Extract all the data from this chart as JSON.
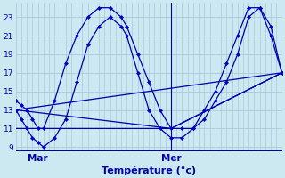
{
  "background_color": "#cce8f0",
  "grid_color": "#aac8dc",
  "line_color": "#0000aa",
  "marker_color": "#0000cc",
  "bottom_line_color": "#0000aa",
  "xlabel": "Température (°c)",
  "xlabel_color": "#0000aa",
  "xlabel_fontsize": 8,
  "ylim": [
    8.5,
    24.5
  ],
  "yticks": [
    9,
    11,
    13,
    15,
    17,
    19,
    21,
    23
  ],
  "ytick_fontsize": 6.5,
  "xlim": [
    0,
    96
  ],
  "xtick_positions": [
    8,
    56
  ],
  "xtick_labels": [
    "Mar",
    "Mer"
  ],
  "xtick_fontsize": 7.5,
  "vline_x": 56,
  "num_x_grid": 48,
  "series": [
    {
      "x": [
        0,
        2,
        4,
        6,
        8,
        10,
        14,
        18,
        22,
        26,
        30,
        34,
        38,
        40,
        44,
        48,
        52,
        56,
        60,
        64,
        68,
        72,
        76,
        80,
        84,
        88,
        92,
        96
      ],
      "y": [
        14,
        13.5,
        13,
        12,
        11,
        11,
        14,
        18,
        21,
        23,
        24,
        24,
        23,
        22,
        19,
        16,
        13,
        11,
        11,
        11,
        13,
        15,
        18,
        21,
        24,
        24,
        22,
        17
      ],
      "marker": true
    },
    {
      "x": [
        0,
        2,
        4,
        6,
        8,
        10,
        14,
        18,
        22,
        26,
        30,
        34,
        38,
        40,
        44,
        48,
        52,
        56,
        60,
        64,
        68,
        72,
        76,
        80,
        84,
        88,
        92,
        96
      ],
      "y": [
        13,
        12,
        11,
        10,
        9.5,
        9,
        10,
        12,
        16,
        20,
        22,
        23,
        22,
        21,
        17,
        13,
        11,
        10,
        10,
        11,
        12,
        14,
        16,
        19,
        23,
        24,
        21,
        17
      ],
      "marker": true
    },
    {
      "x": [
        0,
        96
      ],
      "y": [
        13,
        17
      ],
      "marker": false
    },
    {
      "x": [
        0,
        56,
        96
      ],
      "y": [
        11,
        11,
        17
      ],
      "marker": false
    },
    {
      "x": [
        0,
        56,
        96
      ],
      "y": [
        13,
        11,
        17
      ],
      "marker": false
    }
  ]
}
